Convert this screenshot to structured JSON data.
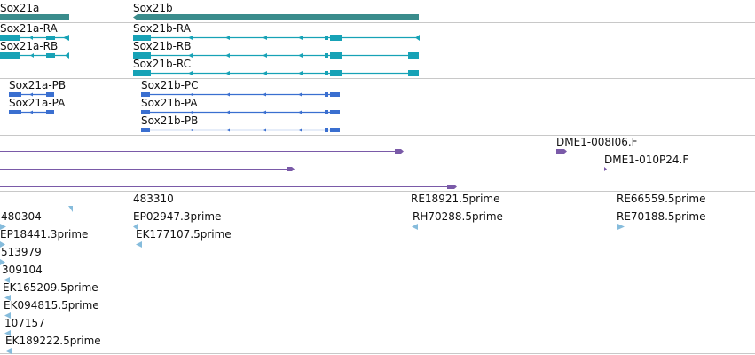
{
  "colors": {
    "gene": "#3a8c8c",
    "transcript": "#17a2b6",
    "protein": "#3a6fd0",
    "clone": "#7a5aa8",
    "est": "#86bcdc",
    "separator": "#c8c8c8"
  },
  "tracks": {
    "genes": [
      {
        "id": "gene-sox21a",
        "label": "Sox21a"
      },
      {
        "id": "gene-sox21b",
        "label": "Sox21b"
      }
    ],
    "transcripts": [
      {
        "id": "tx-sox21a-ra",
        "label": "Sox21a-RA"
      },
      {
        "id": "tx-sox21a-rb",
        "label": "Sox21a-RB"
      },
      {
        "id": "tx-sox21b-ra",
        "label": "Sox21b-RA"
      },
      {
        "id": "tx-sox21b-rb",
        "label": "Sox21b-RB"
      },
      {
        "id": "tx-sox21b-rc",
        "label": "Sox21b-RC"
      }
    ],
    "proteins": [
      {
        "id": "pp-sox21a-pb",
        "label": "Sox21a-PB"
      },
      {
        "id": "pp-sox21a-pa",
        "label": "Sox21a-PA"
      },
      {
        "id": "pp-sox21b-pc",
        "label": "Sox21b-PC"
      },
      {
        "id": "pp-sox21b-pa",
        "label": "Sox21b-PA"
      },
      {
        "id": "pp-sox21b-pb",
        "label": "Sox21b-PB"
      }
    ],
    "clones": [
      {
        "id": "clone-008i06",
        "label": "DME1-008I06.F"
      },
      {
        "id": "clone-010p24",
        "label": "DME1-010P24.F"
      }
    ],
    "ests": [
      {
        "id": "est-483310",
        "label": "483310"
      },
      {
        "id": "est-re18921",
        "label": "RE18921.5prime"
      },
      {
        "id": "est-re66559",
        "label": "RE66559.5prime"
      },
      {
        "id": "est-480304",
        "label": "480304"
      },
      {
        "id": "est-ep02947",
        "label": "EP02947.3prime"
      },
      {
        "id": "est-rh70288",
        "label": "RH70288.5prime"
      },
      {
        "id": "est-re70188",
        "label": "RE70188.5prime"
      },
      {
        "id": "est-ep18441",
        "label": "EP18441.3prime"
      },
      {
        "id": "est-ek177107",
        "label": "EK177107.5prime"
      },
      {
        "id": "est-513979",
        "label": "513979"
      },
      {
        "id": "est-309104",
        "label": "309104"
      },
      {
        "id": "est-ek165209",
        "label": "EK165209.5prime"
      },
      {
        "id": "est-ek094815",
        "label": "EK094815.5prime"
      },
      {
        "id": "est-107157",
        "label": "107157"
      },
      {
        "id": "est-ek189222",
        "label": "EK189222.5prime"
      }
    ]
  }
}
